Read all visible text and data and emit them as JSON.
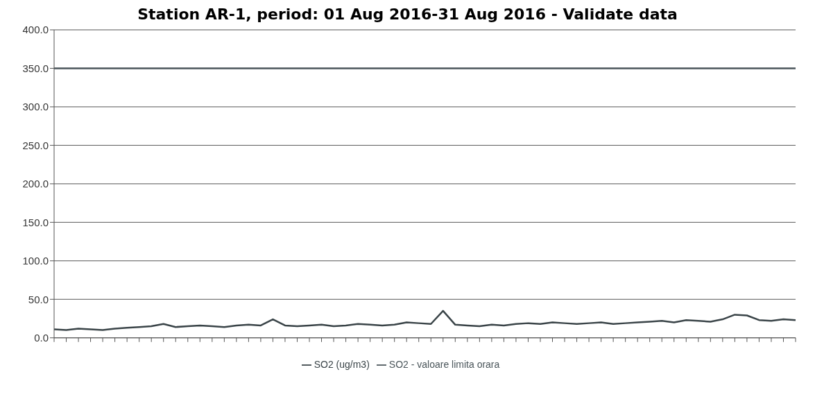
{
  "chart_data": {
    "type": "line",
    "title": "Station AR-1, period: 01 Aug 2016-31 Aug 2016 - Validate data",
    "categories": [
      null,
      null,
      null,
      null,
      null,
      null,
      null,
      null,
      null,
      null,
      null,
      null,
      null,
      null,
      null,
      null,
      null,
      null,
      null,
      null,
      null,
      null,
      null,
      null,
      null,
      null,
      null,
      null,
      null,
      null,
      null,
      null,
      null,
      null,
      null,
      null,
      null,
      null,
      null,
      null,
      null,
      null,
      null,
      null,
      null,
      null,
      null,
      null,
      null,
      null,
      null,
      null,
      null,
      null,
      null,
      null,
      null,
      null,
      null,
      null,
      null,
      null
    ],
    "series": [
      {
        "name": "SO2 (ug/m3)",
        "color": "#3a4448",
        "values": [
          11,
          10,
          12,
          11,
          10,
          12,
          13,
          14,
          15,
          18,
          14,
          15,
          16,
          15,
          14,
          16,
          17,
          16,
          24,
          16,
          15,
          16,
          17,
          15,
          16,
          18,
          17,
          16,
          17,
          20,
          19,
          18,
          35,
          17,
          16,
          15,
          17,
          16,
          18,
          19,
          18,
          20,
          19,
          18,
          19,
          20,
          18,
          19,
          20,
          21,
          22,
          20,
          23,
          22,
          21,
          24,
          30,
          29,
          23,
          22,
          24,
          23
        ]
      },
      {
        "name": "SO2 - valoare limita orara",
        "color": "#4a555a",
        "values": [
          350,
          350,
          350,
          350,
          350,
          350,
          350,
          350,
          350,
          350,
          350,
          350,
          350,
          350,
          350,
          350,
          350,
          350,
          350,
          350,
          350,
          350,
          350,
          350,
          350,
          350,
          350,
          350,
          350,
          350,
          350,
          350,
          350,
          350,
          350,
          350,
          350,
          350,
          350,
          350,
          350,
          350,
          350,
          350,
          350,
          350,
          350,
          350,
          350,
          350,
          350,
          350,
          350,
          350,
          350,
          350,
          350,
          350,
          350,
          350,
          350,
          350
        ]
      }
    ],
    "ylim": [
      0,
      400
    ],
    "yticks": [
      {
        "value": 0,
        "label": "0.0"
      },
      {
        "value": 50,
        "label": "50.0"
      },
      {
        "value": 100,
        "label": "100.0"
      },
      {
        "value": 150,
        "label": "150.0"
      },
      {
        "value": 200,
        "label": "200.0"
      },
      {
        "value": 250,
        "label": "250.0"
      },
      {
        "value": 300,
        "label": "300.0"
      },
      {
        "value": 350,
        "label": "350.0"
      },
      {
        "value": 400,
        "label": "400.0"
      }
    ],
    "grid": "y",
    "legend": "bottom",
    "marker": "none",
    "line_style": "solid"
  }
}
